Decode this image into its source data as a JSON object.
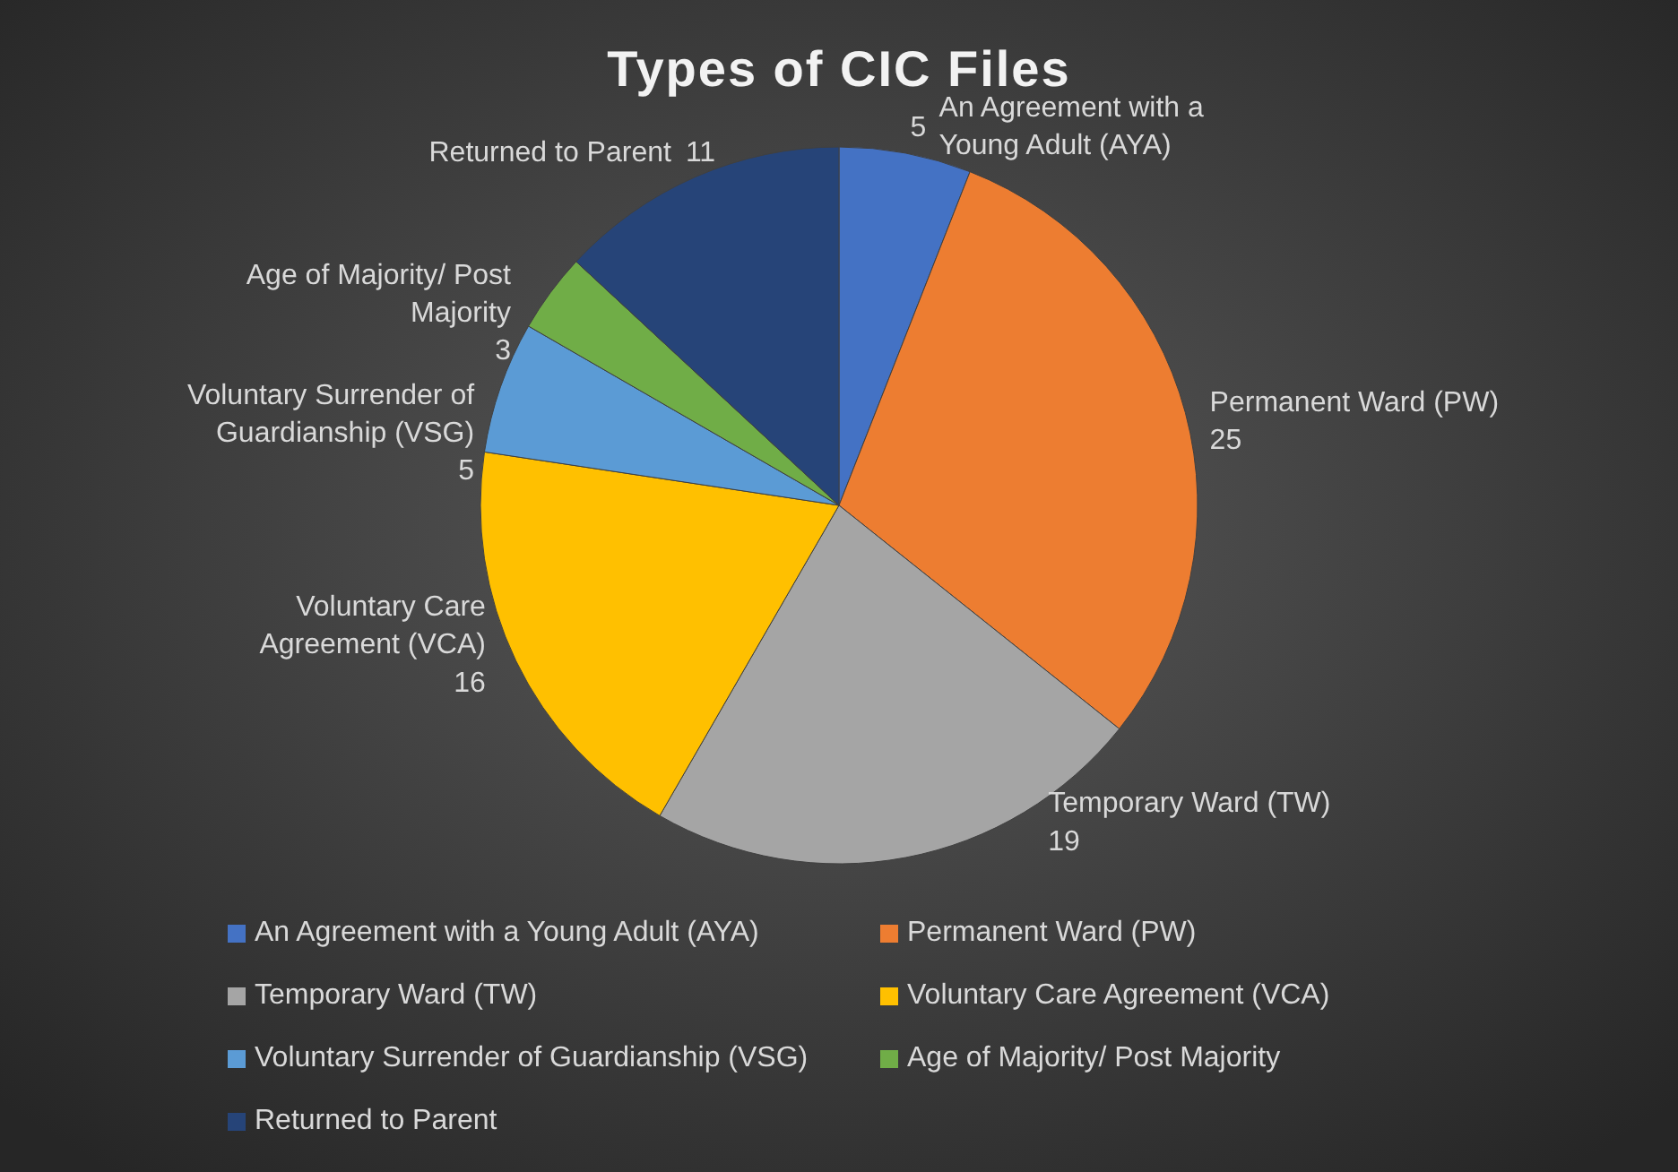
{
  "chart_data": {
    "type": "pie",
    "title": "Types of CIC Files",
    "categories": [
      "An Agreement with a Young Adult (AYA)",
      "Permanent Ward (PW)",
      "Temporary Ward (TW)",
      "Voluntary Care Agreement (VCA)",
      "Voluntary Surrender of Guardianship (VSG)",
      "Age of Majority/ Post Majority",
      "Returned to Parent"
    ],
    "values": [
      5,
      25,
      19,
      16,
      5,
      3,
      11
    ],
    "colors": [
      "#4472c4",
      "#ed7d31",
      "#a5a5a5",
      "#ffc000",
      "#5b9bd5",
      "#70ad47",
      "#264478"
    ],
    "data_labels": true,
    "legend": "bottom"
  }
}
